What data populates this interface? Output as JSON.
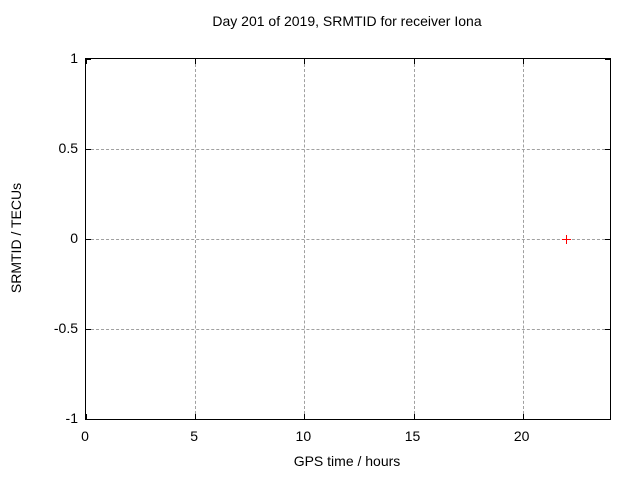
{
  "chart_data": {
    "type": "scatter",
    "title": "Day 201 of 2019, SRMTID for receiver Iona",
    "xlabel": "GPS time / hours",
    "ylabel": "SRMTID / TECUs",
    "xlim": [
      0,
      24
    ],
    "ylim": [
      -1,
      1
    ],
    "x_ticks": [
      {
        "value": 0,
        "label": "0"
      },
      {
        "value": 5,
        "label": "5"
      },
      {
        "value": 10,
        "label": "10"
      },
      {
        "value": 15,
        "label": "15"
      },
      {
        "value": 20,
        "label": "20"
      }
    ],
    "y_ticks": [
      {
        "value": -1,
        "label": "-1"
      },
      {
        "value": -0.5,
        "label": "-0.5"
      },
      {
        "value": 0,
        "label": "0"
      },
      {
        "value": 0.5,
        "label": "0.5"
      },
      {
        "value": 1,
        "label": "1"
      }
    ],
    "grid": true,
    "legend": "none",
    "series": [
      {
        "name": "SRMTID",
        "marker": "plus",
        "color": "#ff0000",
        "points": [
          {
            "x": 22,
            "y": 0
          }
        ]
      }
    ],
    "colors": {
      "border": "#000000",
      "grid": "#a0a0a0",
      "text": "#000000",
      "background": "#ffffff",
      "marker": "#ff0000"
    }
  }
}
